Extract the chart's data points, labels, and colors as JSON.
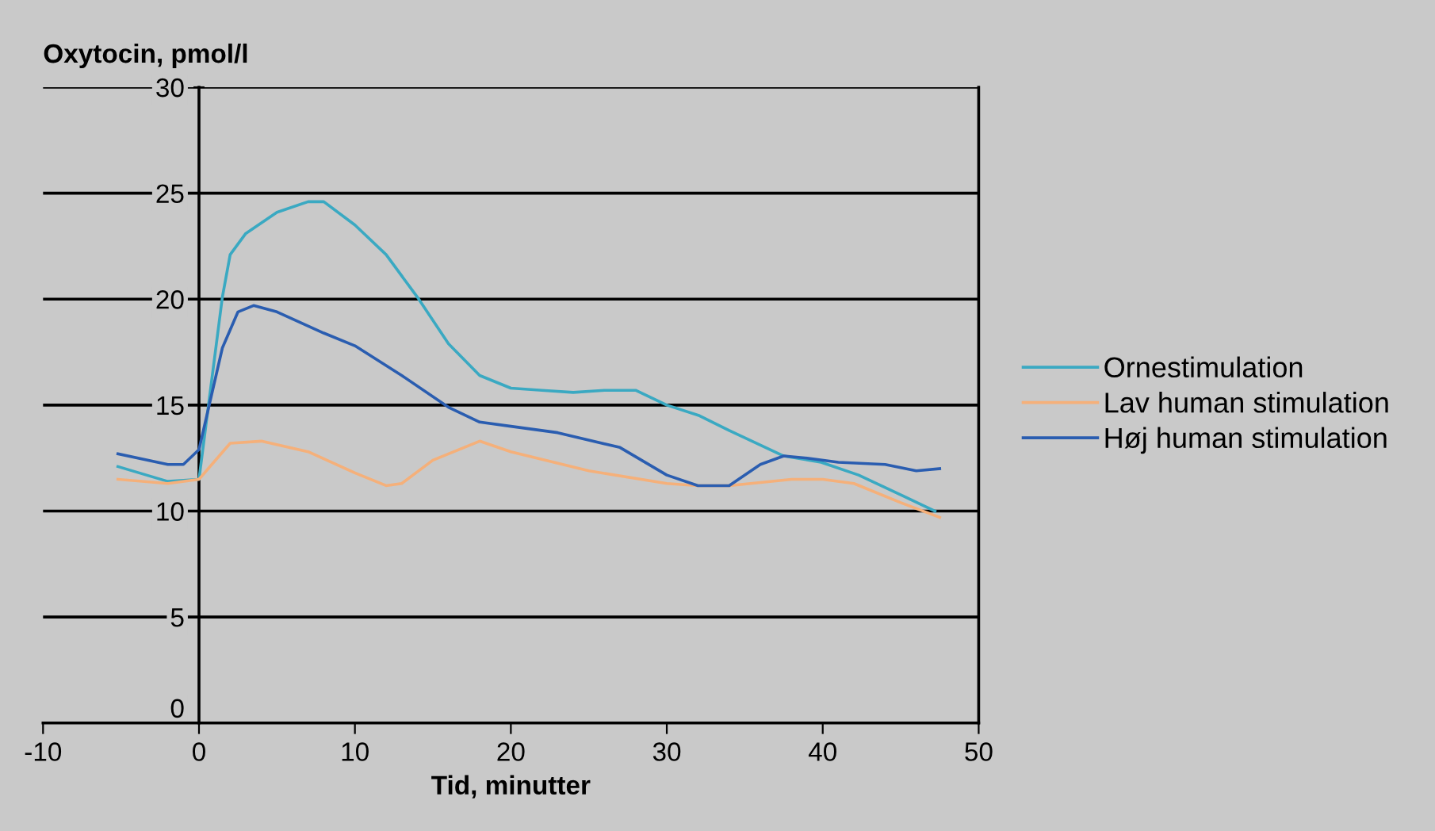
{
  "chart_data": {
    "type": "line",
    "ylabel": "Oxytocin, pmol/l",
    "xlabel": "Tid, minutter",
    "xlim": [
      -10,
      50
    ],
    "xticks": [
      -10,
      0,
      10,
      20,
      30,
      40,
      50
    ],
    "ylim": [
      0,
      30
    ],
    "yticks": [
      0,
      5,
      10,
      15,
      20,
      25,
      30
    ],
    "grid": "y",
    "legend": "right",
    "marker": "none",
    "line_style": "solid",
    "series": [
      {
        "name": "Ornestimulation",
        "color": "#3aa9c2",
        "x": [
          -5.2,
          -2,
          0,
          1.5,
          2,
          3,
          5,
          7,
          8,
          10,
          12,
          14,
          16,
          18,
          20,
          22,
          24,
          26,
          28,
          30,
          32.1,
          34,
          37.5,
          39.9,
          42.3,
          45.2,
          47.2
        ],
        "values": [
          12.1,
          11.4,
          11.5,
          20.1,
          22.1,
          23.1,
          24.1,
          24.6,
          24.6,
          23.5,
          22.1,
          20.1,
          17.9,
          16.4,
          15.8,
          15.7,
          15.6,
          15.7,
          15.7,
          15.0,
          14.5,
          13.8,
          12.6,
          12.3,
          11.7,
          10.7,
          10.0
        ]
      },
      {
        "name": "Lav human stimulation",
        "color": "#f5b07a",
        "x": [
          -5.2,
          -2,
          0,
          2,
          4,
          7,
          10,
          12,
          13,
          15,
          18,
          20,
          25,
          30,
          32,
          34,
          38,
          40,
          42,
          45,
          47.5
        ],
        "values": [
          11.5,
          11.3,
          11.5,
          13.2,
          13.3,
          12.8,
          11.8,
          11.2,
          11.3,
          12.4,
          13.3,
          12.8,
          11.9,
          11.3,
          11.2,
          11.2,
          11.5,
          11.5,
          11.3,
          10.4,
          9.7
        ]
      },
      {
        "name": "Høj human stimulation",
        "color": "#2a5db0",
        "x": [
          -5.2,
          -2,
          -1,
          0,
          1.5,
          2.5,
          3.5,
          5,
          8,
          10,
          13,
          16,
          18,
          20,
          23,
          27,
          30,
          32,
          34,
          36,
          37.5,
          39,
          41,
          44,
          46,
          47.5
        ],
        "values": [
          12.7,
          12.2,
          12.2,
          12.9,
          17.7,
          19.4,
          19.7,
          19.4,
          18.4,
          17.8,
          16.4,
          14.9,
          14.2,
          14.0,
          13.7,
          13.0,
          11.7,
          11.2,
          11.2,
          12.2,
          12.6,
          12.5,
          12.3,
          12.2,
          11.9,
          12.0
        ]
      }
    ]
  }
}
